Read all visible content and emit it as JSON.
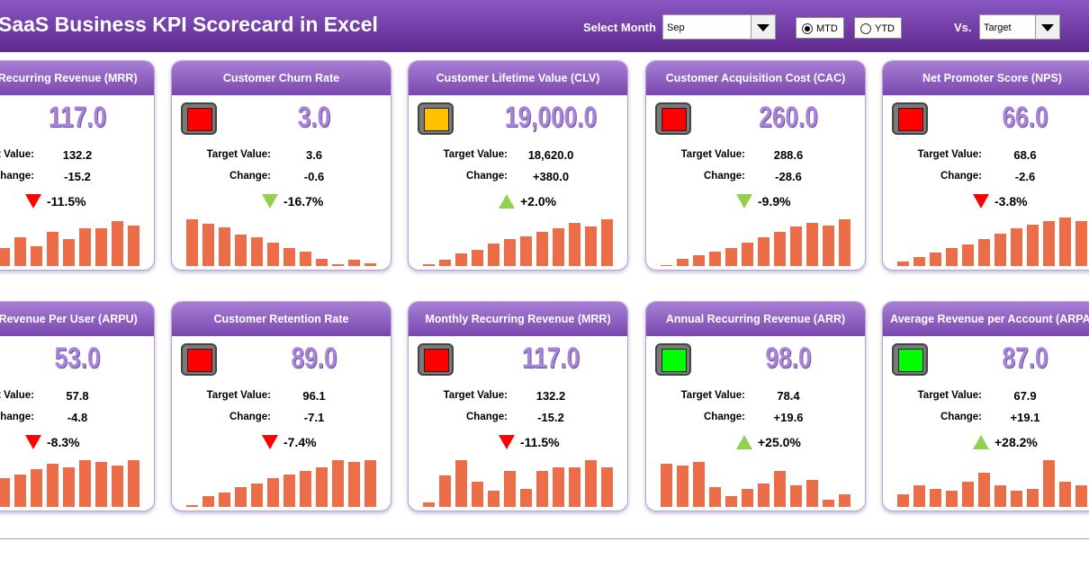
{
  "header": {
    "title": "SaaS Business KPI Scorecard in Excel",
    "month_label": "Select Month",
    "month": "Sep",
    "modes": [
      {
        "label": "MTD",
        "selected": true
      },
      {
        "label": "YTD",
        "selected": false
      }
    ],
    "vs_label": "Vs.",
    "vs": "Target"
  },
  "labels": {
    "target": "Target Value:",
    "change": "Change:"
  },
  "cards": [
    {
      "title": "Monthly Recurring Revenue (MRR)",
      "value": "117.0",
      "target": "132.2",
      "change": "-15.2",
      "percent": "-11.5%",
      "arrow": "down",
      "arrow_color": "#ff0000",
      "trend": [
        30,
        25,
        35,
        20,
        32,
        22,
        38,
        30,
        42,
        42,
        50,
        45
      ]
    },
    {
      "title": "Customer Churn Rate",
      "value": "3.0",
      "target": "3.6",
      "change": "-0.6",
      "percent": "-16.7%",
      "arrow": "down",
      "arrow_color": "#92d050",
      "status": "#ff0000",
      "trend": [
        52,
        47,
        43,
        35,
        32,
        26,
        20,
        16,
        8,
        2,
        7,
        3
      ]
    },
    {
      "title": "Customer Lifetime Value (CLV)",
      "value": "19,000.0",
      "target": "18,620.0",
      "change": "+380.0",
      "percent": "+2.0%",
      "arrow": "up",
      "arrow_color": "#92d050",
      "status": "#ffc000",
      "trend": [
        2,
        7,
        14,
        18,
        25,
        30,
        33,
        38,
        42,
        48,
        44,
        52
      ]
    },
    {
      "title": "Customer Acquisition Cost (CAC)",
      "value": "260.0",
      "target": "288.6",
      "change": "-28.6",
      "percent": "-9.9%",
      "arrow": "down",
      "arrow_color": "#92d050",
      "status": "#ff0000",
      "trend": [
        1,
        8,
        12,
        16,
        20,
        26,
        32,
        38,
        44,
        48,
        45,
        52
      ]
    },
    {
      "title": "Net Promoter Score (NPS)",
      "value": "66.0",
      "target": "68.6",
      "change": "-2.6",
      "percent": "-3.8%",
      "arrow": "down",
      "arrow_color": "#ff0000",
      "status": "#ff0000",
      "trend": [
        5,
        10,
        15,
        20,
        24,
        30,
        36,
        42,
        46,
        50,
        54,
        50
      ]
    },
    {
      "title": "Average Revenue Per User (ARPU)",
      "value": "53.0",
      "target": "57.8",
      "change": "-4.8",
      "percent": "-8.3%",
      "arrow": "down",
      "arrow_color": "#ff0000",
      "trend": [
        15,
        22,
        28,
        32,
        36,
        42,
        48,
        44,
        52,
        50,
        46,
        52
      ]
    },
    {
      "title": "Customer Retention Rate",
      "value": "89.0",
      "target": "96.1",
      "change": "-7.1",
      "percent": "-7.4%",
      "arrow": "down",
      "arrow_color": "#ff0000",
      "status": "#ff0000",
      "trend": [
        2,
        12,
        16,
        22,
        26,
        32,
        36,
        40,
        44,
        52,
        50,
        52
      ]
    },
    {
      "title": "Monthly Recurring Revenue (MRR)",
      "value": "117.0",
      "target": "132.2",
      "change": "-15.2",
      "percent": "-11.5%",
      "arrow": "down",
      "arrow_color": "#ff0000",
      "status": "#ff0000",
      "trend": [
        5,
        35,
        52,
        28,
        18,
        40,
        20,
        40,
        44,
        44,
        52,
        44
      ]
    },
    {
      "title": "Annual Recurring Revenue (ARR)",
      "value": "98.0",
      "target": "78.4",
      "change": "+19.6",
      "percent": "+25.0%",
      "arrow": "up",
      "arrow_color": "#92d050",
      "status": "#00ff00",
      "trend": [
        48,
        46,
        50,
        22,
        12,
        20,
        26,
        40,
        24,
        30,
        8,
        14
      ]
    },
    {
      "title": "Average Revenue per Account (ARPA)",
      "value": "87.0",
      "target": "67.9",
      "change": "+19.1",
      "percent": "+28.2%",
      "arrow": "up",
      "arrow_color": "#92d050",
      "status": "#00ff00",
      "trend": [
        14,
        24,
        20,
        18,
        28,
        38,
        24,
        18,
        20,
        52,
        28,
        24
      ]
    }
  ]
}
